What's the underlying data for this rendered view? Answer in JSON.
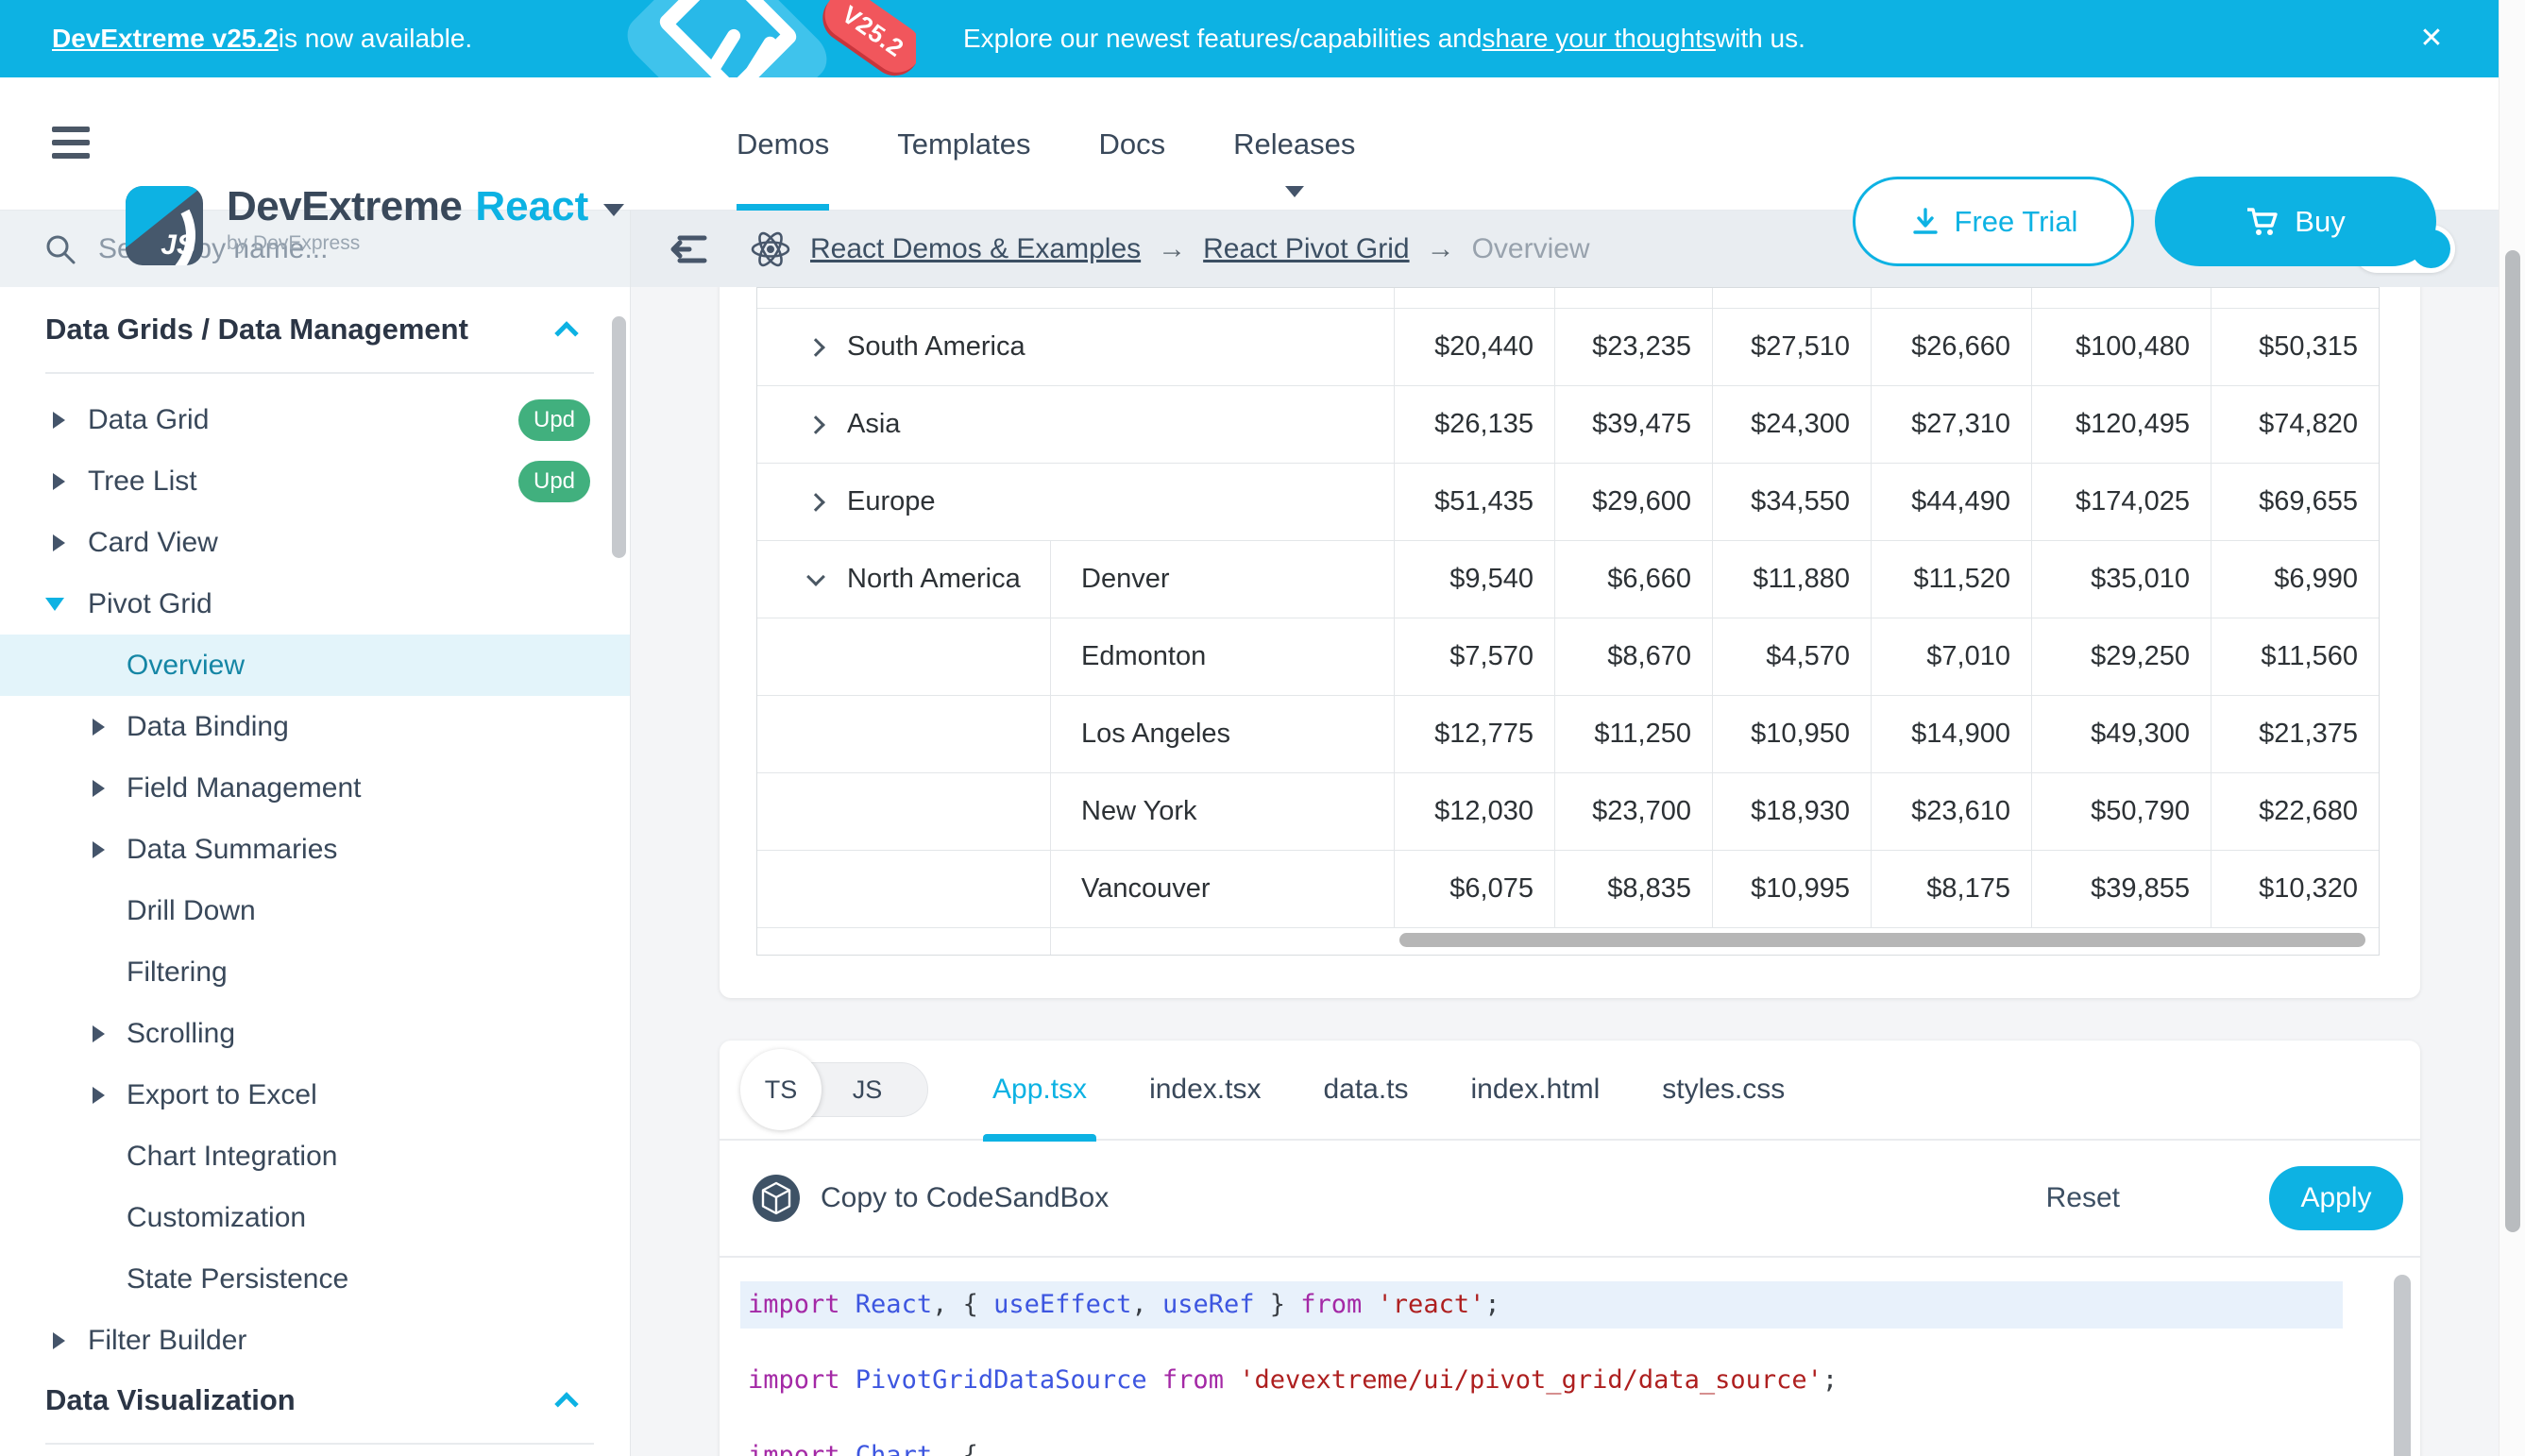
{
  "colors": {
    "accent": "#0db2e3",
    "badge_green": "#41b07e",
    "code_highlight": "#e8f1fb"
  },
  "banner": {
    "link_text": "DevExtreme v25.2",
    "left_rest": " is now available.",
    "badge": "V25.2",
    "msg_pre": "Explore our newest features/capabilities and ",
    "msg_link": "share your thoughts",
    "msg_post": " with us.",
    "close_glyph": "✕"
  },
  "header": {
    "logo_text": "JS",
    "brand": "DevExtreme",
    "framework": "React",
    "brand_sub": "by DevExpress",
    "nav": [
      {
        "label": "Demos",
        "active": true
      },
      {
        "label": "Templates"
      },
      {
        "label": "Docs"
      },
      {
        "label": "Releases",
        "caret": true
      }
    ],
    "free_trial": "Free Trial",
    "buy": "Buy"
  },
  "sidebar": {
    "search_placeholder": "Search by name...",
    "items": [
      {
        "kind": "section",
        "label": "Data Grids / Data Management"
      },
      {
        "kind": "item",
        "label": "Data Grid",
        "arrow": "collapsed",
        "badge": "Upd"
      },
      {
        "kind": "item",
        "label": "Tree List",
        "arrow": "collapsed",
        "badge": "Upd"
      },
      {
        "kind": "item",
        "label": "Card View",
        "arrow": "collapsed"
      },
      {
        "kind": "item",
        "label": "Pivot Grid",
        "arrow": "expanded"
      },
      {
        "kind": "sub",
        "label": "Overview",
        "selected": true
      },
      {
        "kind": "sub",
        "label": "Data Binding",
        "arrow": "collapsed"
      },
      {
        "kind": "sub",
        "label": "Field Management",
        "arrow": "collapsed"
      },
      {
        "kind": "sub",
        "label": "Data Summaries",
        "arrow": "collapsed"
      },
      {
        "kind": "sub",
        "label": "Drill Down"
      },
      {
        "kind": "sub",
        "label": "Filtering"
      },
      {
        "kind": "sub",
        "label": "Scrolling",
        "arrow": "collapsed"
      },
      {
        "kind": "sub",
        "label": "Export to Excel",
        "arrow": "collapsed"
      },
      {
        "kind": "sub",
        "label": "Chart Integration"
      },
      {
        "kind": "sub",
        "label": "Customization"
      },
      {
        "kind": "sub",
        "label": "State Persistence"
      },
      {
        "kind": "item",
        "label": "Filter Builder",
        "arrow": "collapsed"
      },
      {
        "kind": "section",
        "label": "Data Visualization"
      }
    ]
  },
  "breadcrumb": {
    "links": [
      "React Demos & Examples",
      "React Pivot Grid"
    ],
    "separator": "→",
    "current": "Overview"
  },
  "pivot": {
    "rows": [
      {
        "kind": "region",
        "label": "South America",
        "expanded": false,
        "values": [
          "$20,440",
          "$23,235",
          "$27,510",
          "$26,660",
          "$100,480",
          "$50,315"
        ]
      },
      {
        "kind": "region",
        "label": "Asia",
        "expanded": false,
        "values": [
          "$26,135",
          "$39,475",
          "$24,300",
          "$27,310",
          "$120,495",
          "$74,820"
        ]
      },
      {
        "kind": "region",
        "label": "Europe",
        "expanded": false,
        "values": [
          "$51,435",
          "$29,600",
          "$34,550",
          "$44,490",
          "$174,025",
          "$69,655"
        ]
      },
      {
        "kind": "city",
        "region": "North America",
        "label": "Denver",
        "values": [
          "$9,540",
          "$6,660",
          "$11,880",
          "$11,520",
          "$35,010",
          "$6,990"
        ]
      },
      {
        "kind": "city",
        "label": "Edmonton",
        "values": [
          "$7,570",
          "$8,670",
          "$4,570",
          "$7,010",
          "$29,250",
          "$11,560"
        ]
      },
      {
        "kind": "city",
        "label": "Los Angeles",
        "values": [
          "$12,775",
          "$11,250",
          "$10,950",
          "$14,900",
          "$49,300",
          "$21,375"
        ]
      },
      {
        "kind": "city",
        "label": "New York",
        "values": [
          "$12,030",
          "$23,700",
          "$18,930",
          "$23,610",
          "$50,790",
          "$22,680"
        ]
      },
      {
        "kind": "city",
        "label": "Vancouver",
        "values": [
          "$6,075",
          "$8,835",
          "$10,995",
          "$8,175",
          "$39,855",
          "$10,320"
        ]
      }
    ]
  },
  "code_panel": {
    "langs": [
      "TS",
      "JS"
    ],
    "active_lang": "TS",
    "tabs": [
      "App.tsx",
      "index.tsx",
      "data.ts",
      "index.html",
      "styles.css"
    ],
    "active_tab": "App.tsx",
    "copy_label": "Copy to CodeSandBox",
    "reset_label": "Reset",
    "apply_label": "Apply",
    "lines": [
      {
        "highlight": true,
        "tokens": [
          [
            "kw",
            "import "
          ],
          [
            "id",
            "React"
          ],
          [
            "pl",
            ", { "
          ],
          [
            "id",
            "useEffect"
          ],
          [
            "pl",
            ", "
          ],
          [
            "id",
            "useRef"
          ],
          [
            "pl",
            " } "
          ],
          [
            "kw",
            "from "
          ],
          [
            "str",
            "'react'"
          ],
          [
            "pl",
            ";"
          ]
        ]
      },
      {
        "highlight": false,
        "tokens": [
          [
            "kw",
            "import "
          ],
          [
            "id",
            "PivotGridDataSource"
          ],
          [
            "pl",
            " "
          ],
          [
            "kw",
            "from "
          ],
          [
            "str",
            "'devextreme/ui/pivot_grid/data_source'"
          ],
          [
            "pl",
            ";"
          ]
        ]
      },
      {
        "highlight": false,
        "tokens": [
          [
            "kw",
            "import "
          ],
          [
            "id",
            "Chart"
          ],
          [
            "pl",
            ", {"
          ]
        ]
      }
    ]
  }
}
